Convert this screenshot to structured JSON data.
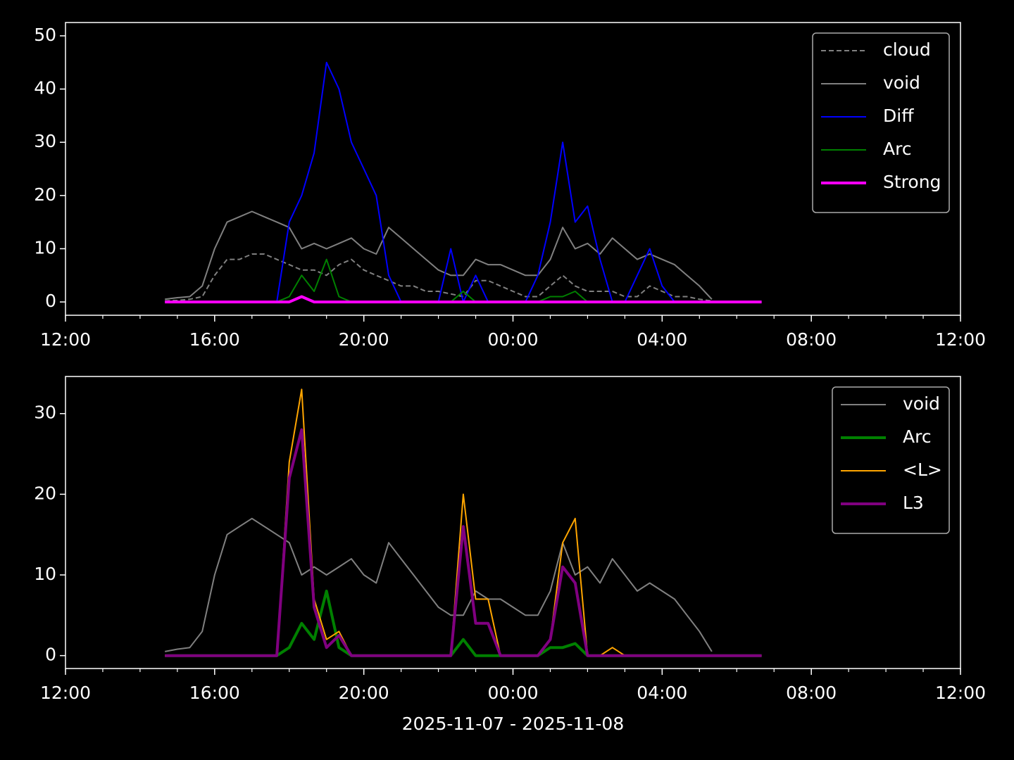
{
  "chart_data": [
    {
      "type": "line",
      "x": [
        "2025-11-07T14:40",
        "2025-11-07T15:00",
        "2025-11-07T15:20",
        "2025-11-07T15:40",
        "2025-11-07T16:00",
        "2025-11-07T16:20",
        "2025-11-07T16:40",
        "2025-11-07T17:00",
        "2025-11-07T17:20",
        "2025-11-07T17:40",
        "2025-11-07T18:00",
        "2025-11-07T18:20",
        "2025-11-07T18:40",
        "2025-11-07T19:00",
        "2025-11-07T19:20",
        "2025-11-07T19:40",
        "2025-11-07T20:00",
        "2025-11-07T20:20",
        "2025-11-07T20:40",
        "2025-11-07T21:00",
        "2025-11-07T21:20",
        "2025-11-07T21:40",
        "2025-11-07T22:00",
        "2025-11-07T22:20",
        "2025-11-07T22:40",
        "2025-11-07T23:00",
        "2025-11-07T23:20",
        "2025-11-07T23:40",
        "2025-11-08T00:00",
        "2025-11-08T00:20",
        "2025-11-08T00:40",
        "2025-11-08T01:00",
        "2025-11-08T01:20",
        "2025-11-08T01:40",
        "2025-11-08T02:00",
        "2025-11-08T02:20",
        "2025-11-08T02:40",
        "2025-11-08T03:00",
        "2025-11-08T03:20",
        "2025-11-08T03:40",
        "2025-11-08T04:00",
        "2025-11-08T04:20",
        "2025-11-08T04:40",
        "2025-11-08T05:00",
        "2025-11-08T05:20",
        "2025-11-08T05:40",
        "2025-11-08T06:00",
        "2025-11-08T06:20",
        "2025-11-08T06:40"
      ],
      "series": [
        {
          "name": "cloud",
          "color": "#808080",
          "dash": "dashed",
          "linewidth": 2,
          "values": [
            0.2,
            0.3,
            0.5,
            1,
            5,
            8,
            8,
            9,
            9,
            8,
            7,
            6,
            6,
            5,
            7,
            8,
            6,
            5,
            4,
            3,
            3,
            2,
            2,
            1.5,
            1,
            4,
            4,
            3,
            2,
            1,
            1,
            3,
            5,
            3,
            2,
            2,
            2,
            1,
            1,
            3,
            2,
            1,
            1,
            0.5,
            0.2,
            null,
            null,
            null,
            null
          ]
        },
        {
          "name": "void",
          "color": "#808080",
          "linewidth": 2,
          "values": [
            0.5,
            0.8,
            1,
            3,
            10,
            15,
            16,
            17,
            16,
            15,
            14,
            10,
            11,
            10,
            11,
            12,
            10,
            9,
            14,
            12,
            10,
            8,
            6,
            5,
            5,
            8,
            7,
            7,
            6,
            5,
            5,
            8,
            14,
            10,
            11,
            9,
            12,
            10,
            8,
            9,
            8,
            7,
            5,
            3,
            0.5,
            null,
            null,
            null,
            null
          ]
        },
        {
          "name": "Diff",
          "color": "#0000ff",
          "linewidth": 2,
          "values": [
            0,
            0,
            0,
            0,
            0,
            0,
            0,
            0,
            0,
            0,
            15,
            20,
            28,
            45,
            40,
            30,
            25,
            20,
            5,
            0,
            0,
            0,
            0,
            10,
            0,
            5,
            0,
            0,
            0,
            0,
            5,
            15,
            30,
            15,
            18,
            8,
            0,
            0,
            5,
            10,
            3,
            0,
            0,
            0,
            0,
            0,
            0,
            0,
            0
          ]
        },
        {
          "name": "Arc",
          "color": "#008000",
          "linewidth": 2,
          "values": [
            0,
            0,
            0,
            0,
            0,
            0,
            0,
            0,
            0,
            0,
            1,
            5,
            2,
            8,
            1,
            0,
            0,
            0,
            0,
            0,
            0,
            0,
            0,
            0,
            2,
            0,
            0,
            0,
            0,
            0,
            0,
            1,
            1,
            2,
            0,
            0,
            0,
            0,
            0,
            0,
            0,
            0,
            0,
            0,
            0,
            0,
            0,
            0,
            0
          ]
        },
        {
          "name": "Strong",
          "color": "#ff00ff",
          "linewidth": 4,
          "values": [
            0,
            0,
            0,
            0,
            0,
            0,
            0,
            0,
            0,
            0,
            0,
            1,
            0,
            0,
            0,
            0,
            0,
            0,
            0,
            0,
            0,
            0,
            0,
            0,
            0,
            0,
            0,
            0,
            0,
            0,
            0,
            0,
            0,
            0,
            0,
            0,
            0,
            0,
            0,
            0,
            0,
            0,
            0,
            0,
            0,
            0,
            0,
            0,
            0
          ]
        }
      ],
      "xlim": [
        "2025-11-07T12:00",
        "2025-11-08T12:00"
      ],
      "xticks": [
        {
          "value": "2025-11-07T12:00",
          "label": "12:00"
        },
        {
          "value": "2025-11-07T16:00",
          "label": "16:00"
        },
        {
          "value": "2025-11-07T20:00",
          "label": "20:00"
        },
        {
          "value": "2025-11-08T00:00",
          "label": "00:00"
        },
        {
          "value": "2025-11-08T04:00",
          "label": "04:00"
        },
        {
          "value": "2025-11-08T08:00",
          "label": "08:00"
        },
        {
          "value": "2025-11-08T12:00",
          "label": "12:00"
        }
      ],
      "ylim": [
        -2.5,
        52.5
      ],
      "yticks": [
        0,
        10,
        20,
        30,
        40,
        50
      ],
      "legend": "upper right"
    },
    {
      "type": "line",
      "x": [
        "2025-11-07T14:40",
        "2025-11-07T15:00",
        "2025-11-07T15:20",
        "2025-11-07T15:40",
        "2025-11-07T16:00",
        "2025-11-07T16:20",
        "2025-11-07T16:40",
        "2025-11-07T17:00",
        "2025-11-07T17:20",
        "2025-11-07T17:40",
        "2025-11-07T18:00",
        "2025-11-07T18:20",
        "2025-11-07T18:40",
        "2025-11-07T19:00",
        "2025-11-07T19:20",
        "2025-11-07T19:40",
        "2025-11-07T20:00",
        "2025-11-07T20:20",
        "2025-11-07T20:40",
        "2025-11-07T21:00",
        "2025-11-07T21:20",
        "2025-11-07T21:40",
        "2025-11-07T22:00",
        "2025-11-07T22:20",
        "2025-11-07T22:40",
        "2025-11-07T23:00",
        "2025-11-07T23:20",
        "2025-11-07T23:40",
        "2025-11-08T00:00",
        "2025-11-08T00:20",
        "2025-11-08T00:40",
        "2025-11-08T01:00",
        "2025-11-08T01:20",
        "2025-11-08T01:40",
        "2025-11-08T02:00",
        "2025-11-08T02:20",
        "2025-11-08T02:40",
        "2025-11-08T03:00",
        "2025-11-08T03:20",
        "2025-11-08T03:40",
        "2025-11-08T04:00",
        "2025-11-08T04:20",
        "2025-11-08T04:40",
        "2025-11-08T05:00",
        "2025-11-08T05:20",
        "2025-11-08T05:40",
        "2025-11-08T06:00",
        "2025-11-08T06:20",
        "2025-11-08T06:40"
      ],
      "series": [
        {
          "name": "void",
          "color": "#808080",
          "linewidth": 2,
          "values": [
            0.5,
            0.8,
            1,
            3,
            10,
            15,
            16,
            17,
            16,
            15,
            14,
            10,
            11,
            10,
            11,
            12,
            10,
            9,
            14,
            12,
            10,
            8,
            6,
            5,
            5,
            8,
            7,
            7,
            6,
            5,
            5,
            8,
            14,
            10,
            11,
            9,
            12,
            10,
            8,
            9,
            8,
            7,
            5,
            3,
            0.5,
            null,
            null,
            null,
            null
          ]
        },
        {
          "name": "Arc",
          "color": "#008000",
          "linewidth": 4,
          "values": [
            0,
            0,
            0,
            0,
            0,
            0,
            0,
            0,
            0,
            0,
            1,
            4,
            2,
            8,
            1,
            0,
            0,
            0,
            0,
            0,
            0,
            0,
            0,
            0,
            2,
            0,
            0,
            0,
            0,
            0,
            0,
            1,
            1,
            1.5,
            0,
            0,
            0,
            0,
            0,
            0,
            0,
            0,
            0,
            0,
            0,
            0,
            0,
            0,
            0
          ]
        },
        {
          "name": "<L>",
          "color": "#ffa500",
          "linewidth": 2,
          "values": [
            0,
            0,
            0,
            0,
            0,
            0,
            0,
            0,
            0,
            0,
            24,
            33,
            7,
            2,
            3,
            0,
            0,
            0,
            0,
            0,
            0,
            0,
            0,
            0,
            20,
            7,
            7,
            0,
            0,
            0,
            0,
            2,
            14,
            17,
            0,
            0,
            1,
            0,
            0,
            0,
            0,
            0,
            0,
            0,
            0,
            0,
            0,
            0,
            0
          ]
        },
        {
          "name": "L3",
          "color": "#800080",
          "linewidth": 4,
          "values": [
            0,
            0,
            0,
            0,
            0,
            0,
            0,
            0,
            0,
            0,
            22,
            28,
            6,
            1,
            2.5,
            0,
            0,
            0,
            0,
            0,
            0,
            0,
            0,
            0,
            16,
            4,
            4,
            0,
            0,
            0,
            0,
            2,
            11,
            9,
            0,
            0,
            0,
            0,
            0,
            0,
            0,
            0,
            0,
            0,
            0,
            0,
            0,
            0,
            0
          ]
        }
      ],
      "xlim": [
        "2025-11-07T12:00",
        "2025-11-08T12:00"
      ],
      "xticks": [
        {
          "value": "2025-11-07T12:00",
          "label": "12:00"
        },
        {
          "value": "2025-11-07T16:00",
          "label": "16:00"
        },
        {
          "value": "2025-11-07T20:00",
          "label": "20:00"
        },
        {
          "value": "2025-11-08T00:00",
          "label": "00:00"
        },
        {
          "value": "2025-11-08T04:00",
          "label": "04:00"
        },
        {
          "value": "2025-11-08T08:00",
          "label": "08:00"
        },
        {
          "value": "2025-11-08T12:00",
          "label": "12:00"
        }
      ],
      "ylim": [
        -1.6,
        34.6
      ],
      "yticks": [
        0,
        10,
        20,
        30
      ],
      "legend": "upper right",
      "xlabel": "2025-11-07 - 2025-11-08"
    }
  ]
}
